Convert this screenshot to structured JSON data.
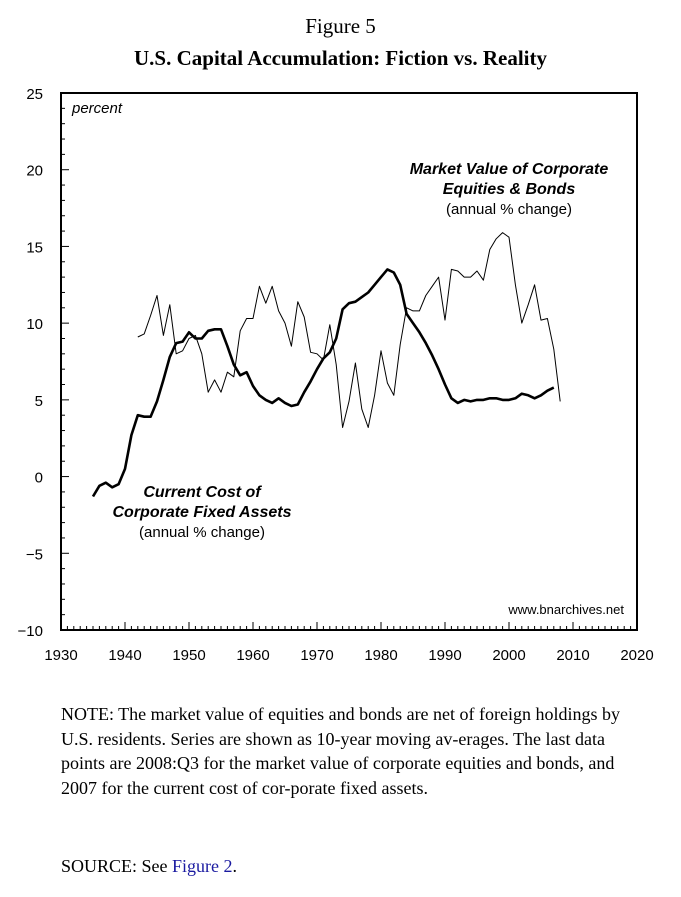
{
  "figure_label": "Figure 5",
  "title": "U.S. Capital Accumulation: Fiction vs. Reality",
  "note": "NOTE: The market value of equities and bonds are net of foreign holdings by U.S. residents. Series are shown as 10-year moving av-erages. The last data points are 2008:Q3 for the market value of corporate equities and bonds, and 2007 for the current cost of cor-porate fixed assets.",
  "source": {
    "prefix": "SOURCE: See ",
    "link_text": "Figure 2",
    "suffix": "."
  },
  "chart_data": {
    "type": "line",
    "ylabel": "percent",
    "xlim": [
      1930,
      2020
    ],
    "ylim": [
      -10,
      25
    ],
    "x_ticks": [
      "1930",
      "1940",
      "1950",
      "1960",
      "1970",
      "1980",
      "1990",
      "2000",
      "2010",
      "2020"
    ],
    "y_ticks": [
      "25",
      "20",
      "15",
      "10",
      "5",
      "0",
      "−5",
      "−10"
    ],
    "grid": false,
    "watermark": "www.bnarchives.net",
    "series": [
      {
        "id": "market",
        "label_lines": [
          "Market Value of Corporate",
          "Equities & Bonds"
        ],
        "sublabel": "(annual % change)",
        "stroke": "thin",
        "color": "#000000",
        "x": [
          1942,
          1943,
          1944,
          1945,
          1946,
          1947,
          1948,
          1949,
          1950,
          1951,
          1952,
          1953,
          1954,
          1955,
          1956,
          1957,
          1958,
          1959,
          1960,
          1961,
          1962,
          1963,
          1964,
          1965,
          1966,
          1967,
          1968,
          1969,
          1970,
          1971,
          1972,
          1973,
          1974,
          1975,
          1976,
          1977,
          1978,
          1979,
          1980,
          1981,
          1982,
          1983,
          1984,
          1985,
          1986,
          1987,
          1988,
          1989,
          1990,
          1991,
          1992,
          1993,
          1994,
          1995,
          1996,
          1997,
          1998,
          1999,
          2000,
          2001,
          2002,
          2003,
          2004,
          2005,
          2006,
          2007,
          2008
        ],
        "y": [
          9.1,
          9.3,
          10.5,
          11.8,
          9.2,
          11.2,
          8.0,
          8.2,
          9.0,
          9.2,
          8.0,
          5.5,
          6.3,
          5.5,
          6.8,
          6.5,
          9.5,
          10.3,
          10.3,
          12.4,
          11.3,
          12.4,
          10.8,
          10.0,
          8.5,
          11.4,
          10.4,
          8.1,
          8.0,
          7.6,
          9.9,
          7.3,
          3.2,
          4.9,
          7.4,
          4.4,
          3.2,
          5.3,
          8.2,
          6.1,
          5.3,
          8.6,
          11.0,
          10.8,
          10.8,
          11.8,
          12.4,
          13.0,
          10.2,
          13.5,
          13.4,
          13.0,
          13.0,
          13.4,
          12.8,
          14.8,
          15.5,
          15.9,
          15.6,
          12.5,
          10.0,
          11.2,
          12.5,
          10.2,
          10.3,
          8.3,
          4.9
        ]
      },
      {
        "id": "assets",
        "label_lines": [
          "Current Cost of",
          "Corporate Fixed Assets"
        ],
        "sublabel": "(annual % change)",
        "stroke": "thick",
        "color": "#000000",
        "x": [
          1935,
          1936,
          1937,
          1938,
          1939,
          1940,
          1941,
          1942,
          1943,
          1944,
          1945,
          1946,
          1947,
          1948,
          1949,
          1950,
          1951,
          1952,
          1953,
          1954,
          1955,
          1956,
          1957,
          1958,
          1959,
          1960,
          1961,
          1962,
          1963,
          1964,
          1965,
          1966,
          1967,
          1968,
          1969,
          1970,
          1971,
          1972,
          1973,
          1974,
          1975,
          1976,
          1977,
          1978,
          1979,
          1980,
          1981,
          1982,
          1983,
          1984,
          1985,
          1986,
          1987,
          1988,
          1989,
          1990,
          1991,
          1992,
          1993,
          1994,
          1995,
          1996,
          1997,
          1998,
          1999,
          2000,
          2001,
          2002,
          2003,
          2004,
          2005,
          2006,
          2007
        ],
        "y": [
          -1.3,
          -0.6,
          -0.4,
          -0.7,
          -0.5,
          0.5,
          2.7,
          4.0,
          3.9,
          3.9,
          4.9,
          6.3,
          7.8,
          8.7,
          8.8,
          9.4,
          9.0,
          9.0,
          9.5,
          9.6,
          9.6,
          8.5,
          7.3,
          6.6,
          6.8,
          5.9,
          5.3,
          5.0,
          4.8,
          5.1,
          4.8,
          4.6,
          4.7,
          5.5,
          6.2,
          7.0,
          7.7,
          8.1,
          9.0,
          10.9,
          11.3,
          11.4,
          11.7,
          12.0,
          12.5,
          13.0,
          13.5,
          13.3,
          12.5,
          10.6,
          10.0,
          9.4,
          8.7,
          7.9,
          7.0,
          6.0,
          5.1,
          4.8,
          5.0,
          4.9,
          5.0,
          5.0,
          5.1,
          5.1,
          5.0,
          5.0,
          5.1,
          5.4,
          5.3,
          5.1,
          5.3,
          5.6,
          5.8
        ]
      }
    ]
  }
}
